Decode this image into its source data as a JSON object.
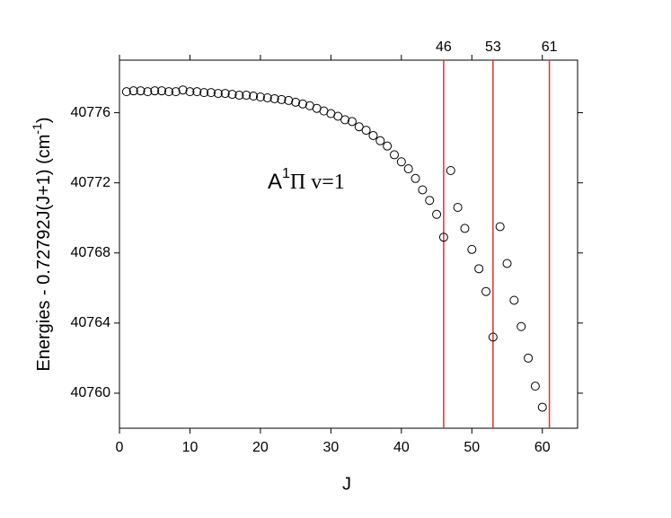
{
  "chart_data": {
    "type": "scatter",
    "xlabel": "J",
    "ylabel": {
      "text": "Energies - 0.72792J(J+1) (cm",
      "sup": "-1",
      "end": ")"
    },
    "annotation": {
      "text": "A",
      "sup": "1",
      "rest": "Π v=1",
      "color": "#0000ff"
    },
    "x": [
      1,
      2,
      3,
      4,
      5,
      6,
      7,
      8,
      9,
      10,
      11,
      12,
      13,
      14,
      15,
      16,
      17,
      18,
      19,
      20,
      21,
      22,
      23,
      24,
      25,
      26,
      27,
      28,
      29,
      30,
      31,
      32,
      33,
      34,
      35,
      36,
      37,
      38,
      39,
      40,
      41,
      42,
      43,
      44,
      45,
      46,
      47,
      48,
      49,
      50,
      51,
      52,
      53,
      54,
      55,
      56,
      57,
      58,
      59,
      60
    ],
    "values": [
      40777.2,
      40777.25,
      40777.25,
      40777.2,
      40777.25,
      40777.25,
      40777.2,
      40777.2,
      40777.3,
      40777.2,
      40777.2,
      40777.15,
      40777.15,
      40777.1,
      40777.1,
      40777.05,
      40777.0,
      40777.0,
      40776.95,
      40776.9,
      40776.85,
      40776.8,
      40776.75,
      40776.7,
      40776.6,
      40776.5,
      40776.4,
      40776.25,
      40776.1,
      40775.95,
      40775.8,
      40775.6,
      40775.5,
      40775.2,
      40775.0,
      40774.7,
      40774.4,
      40774.1,
      40773.6,
      40773.2,
      40772.8,
      40772.25,
      40771.6,
      40771.0,
      40770.2,
      40768.9,
      40772.7,
      40770.6,
      40769.4,
      40768.2,
      40767.1,
      40765.8,
      40763.2,
      40769.5,
      40767.4,
      40765.3,
      40763.8,
      40762.0,
      40760.4,
      40759.2
    ],
    "marker_color": "#000000",
    "vlines": [
      46,
      53,
      61
    ],
    "vline_color": "#e03030",
    "xlim": [
      0,
      65
    ],
    "xticks": [
      0,
      10,
      20,
      30,
      40,
      50,
      60
    ],
    "ylim": [
      40758,
      40779
    ],
    "yticks": [
      40760,
      40764,
      40768,
      40772,
      40776
    ]
  }
}
